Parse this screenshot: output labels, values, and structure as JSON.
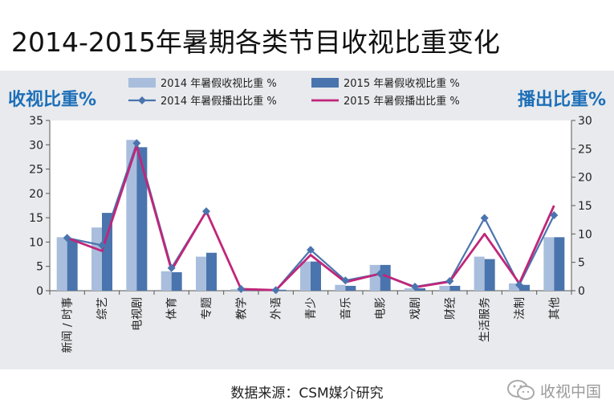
{
  "title": "2014-2015年暑期各类节目收视比重变化",
  "source": "数据来源：CSM媒介研究",
  "watermark": "收视中国",
  "colors": {
    "bar2014": "#a9bedd",
    "bar2015": "#4a74ad",
    "line2014": "#4a74ad",
    "line2015": "#c0267a",
    "axisTitle": "#1d6fb8"
  },
  "chart_data": {
    "type": "bar+line",
    "title": "2014-2015年暑期各类节目收视比重变化",
    "ylabel_left": "收视比重%",
    "ylabel_right": "播出比重%",
    "ylim_left": [
      0,
      35
    ],
    "yticks_left": [
      0,
      5,
      10,
      15,
      20,
      25,
      30,
      35
    ],
    "ylim_right": [
      0,
      30
    ],
    "yticks_right": [
      0,
      5,
      10,
      15,
      20,
      25,
      30
    ],
    "categories": [
      "新闻 / 时事",
      "综艺",
      "电视剧",
      "体育",
      "专题",
      "教学",
      "外语",
      "青少",
      "音乐",
      "电影",
      "戏剧",
      "财经",
      "生活服务",
      "法制",
      "其他"
    ],
    "series": [
      {
        "name": "2014 年暑假收视比重 %",
        "kind": "bar",
        "axis": "left",
        "values": [
          11,
          13,
          31,
          4,
          7,
          0.3,
          0.2,
          6,
          1.2,
          5.3,
          0.5,
          1,
          7,
          1.5,
          11
        ]
      },
      {
        "name": "2015 年暑假收视比重 %",
        "kind": "bar",
        "axis": "left",
        "values": [
          10.5,
          16,
          29.5,
          3.8,
          7.8,
          0.3,
          0.2,
          6,
          1,
          5.3,
          0.5,
          1,
          6.5,
          1.2,
          11
        ]
      },
      {
        "name": "2014 年暑假播出比重 %",
        "kind": "line",
        "axis": "right",
        "values": [
          9.3,
          8,
          26,
          4,
          14,
          0.3,
          0.1,
          7.2,
          1.8,
          3,
          0.7,
          1.7,
          12.8,
          1,
          13.3
        ]
      },
      {
        "name": "2015 年暑假播出比重 %",
        "kind": "line",
        "axis": "right",
        "values": [
          9.3,
          7,
          25.5,
          3.6,
          14,
          0.3,
          0.1,
          6.3,
          1.5,
          3,
          0.6,
          1.6,
          10,
          1.3,
          15
        ]
      }
    ]
  }
}
